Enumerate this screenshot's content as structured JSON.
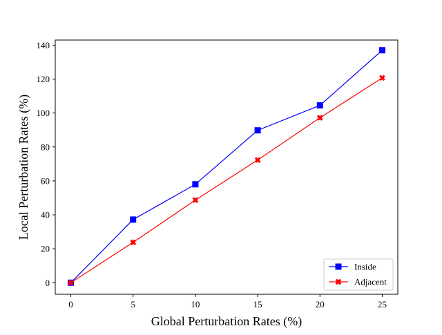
{
  "chart_data": {
    "type": "line",
    "title": "",
    "xlabel": "Global Perturbation Rates (%)",
    "ylabel": "Local Perturbation Rates (%)",
    "x": [
      0,
      5,
      10,
      15,
      20,
      25
    ],
    "xlim": [
      -1.25,
      26.25
    ],
    "ylim": [
      -6.8,
      143
    ],
    "xticks": [
      "0",
      "5",
      "10",
      "15",
      "20",
      "25"
    ],
    "yticks": [
      "0",
      "20",
      "40",
      "60",
      "80",
      "100",
      "120",
      "140"
    ],
    "grid": false,
    "legend_position": "lower-right",
    "series": [
      {
        "name": "Inside",
        "color": "#0000ff",
        "marker": "square",
        "values": [
          0,
          37.2,
          58.0,
          89.8,
          104.5,
          137.0
        ]
      },
      {
        "name": "Adjacent",
        "color": "#ff0000",
        "marker": "x",
        "values": [
          0,
          23.8,
          48.7,
          72.3,
          97.2,
          120.7
        ]
      }
    ]
  }
}
